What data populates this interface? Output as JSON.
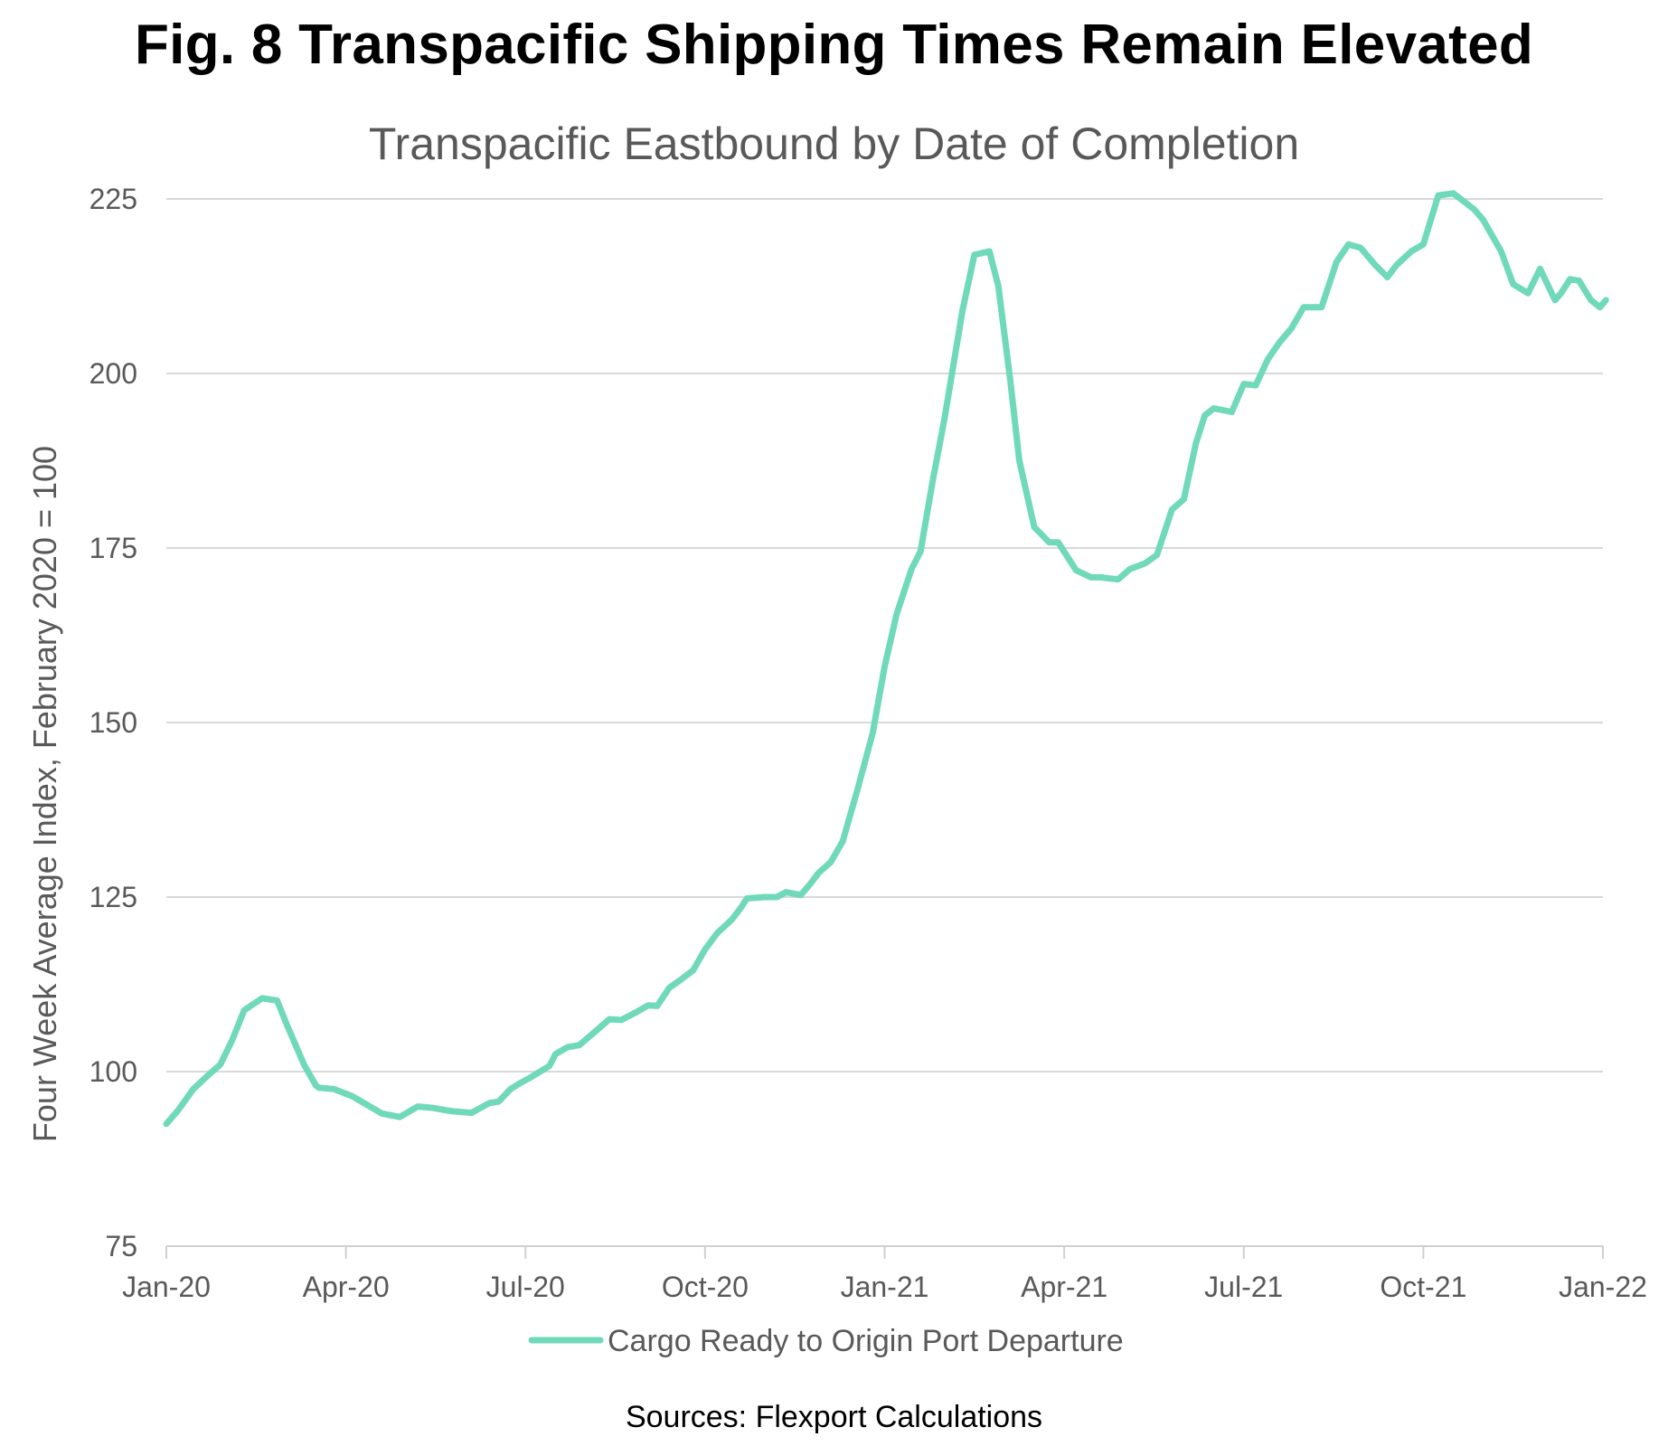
{
  "chart_data": {
    "type": "line",
    "title": "Fig. 8 Transpacific Shipping Times Remain Elevated",
    "subtitle": "Transpacific Eastbound by Date of Completion",
    "ylabel": "Four Week Average Index, February 2020 = 100",
    "xlabel": "",
    "source": "Sources: Flexport Calculations",
    "ylim": [
      75,
      225
    ],
    "yticks": [
      75,
      100,
      125,
      150,
      175,
      200,
      225
    ],
    "xlim": [
      0,
      24
    ],
    "xticks": [
      0,
      3,
      6,
      9,
      12,
      15,
      18,
      21,
      24
    ],
    "xtick_labels": [
      "Jan-20",
      "Apr-20",
      "Jul-20",
      "Oct-20",
      "Jan-21",
      "Apr-21",
      "Jul-21",
      "Oct-21",
      "Jan-22"
    ],
    "x_unit": "months since Jan 2020",
    "grid": true,
    "legend": "bottom-center",
    "color": "#6FD9BA",
    "series": [
      {
        "name": "Cargo Ready to Origin Port Departure",
        "x": [
          0.0,
          0.2,
          0.45,
          0.7,
          0.9,
          1.1,
          1.3,
          1.6,
          1.85,
          2.0,
          2.3,
          2.5,
          2.55,
          2.8,
          3.1,
          3.3,
          3.6,
          3.9,
          4.2,
          4.45,
          4.65,
          4.8,
          5.1,
          5.4,
          5.55,
          5.75,
          5.9,
          6.05,
          6.4,
          6.5,
          6.7,
          6.9,
          7.2,
          7.4,
          7.6,
          7.85,
          8.05,
          8.2,
          8.4,
          8.6,
          8.8,
          9.0,
          9.2,
          9.45,
          9.6,
          9.7,
          10.0,
          10.2,
          10.35,
          10.6,
          10.75,
          10.9,
          11.1,
          11.3,
          11.55,
          11.8,
          12.0,
          12.2,
          12.45,
          12.6,
          12.8,
          13.0,
          13.3,
          13.5,
          13.75,
          13.9,
          14.1,
          14.25,
          14.5,
          14.75,
          14.9,
          15.2,
          15.45,
          15.6,
          15.9,
          16.1,
          16.35,
          16.55,
          16.8,
          17.0,
          17.2,
          17.35,
          17.5,
          17.8,
          18.0,
          18.2,
          18.4,
          18.6,
          18.8,
          19.0,
          19.3,
          19.55,
          19.75,
          19.95,
          20.2,
          20.4,
          20.55,
          20.8,
          21.0,
          21.25,
          21.5,
          21.7,
          21.85,
          22.0,
          22.3,
          22.5,
          22.75,
          22.95,
          23.2,
          23.3,
          23.45,
          23.6,
          23.8,
          23.95,
          24.05
        ],
        "values": [
          92.5,
          94.5,
          97.5,
          99.5,
          101,
          104.5,
          108.8,
          110.5,
          110.2,
          107,
          101,
          98,
          97.7,
          97.5,
          96.5,
          95.5,
          94,
          93.5,
          95,
          94.8,
          94.5,
          94.3,
          94.1,
          95.5,
          95.7,
          97.5,
          98.3,
          99,
          100.8,
          102.5,
          103.5,
          103.8,
          106,
          107.5,
          107.4,
          108.5,
          109.5,
          109.4,
          112,
          113.2,
          114.5,
          117.5,
          119.8,
          121.8,
          123.5,
          124.8,
          125,
          125,
          125.7,
          125.3,
          126.8,
          128.5,
          130,
          133,
          140.5,
          148.5,
          158,
          165.5,
          172,
          174.5,
          184.5,
          193.5,
          209,
          217,
          217.5,
          212.5,
          199,
          187.5,
          178,
          175.8,
          175.8,
          171.8,
          170.8,
          170.8,
          170.5,
          172,
          172.8,
          174,
          180.5,
          182,
          190,
          194,
          195,
          194.5,
          198.5,
          198.3,
          202,
          204.5,
          206.5,
          209.5,
          209.5,
          216,
          218.5,
          218,
          215.5,
          213.8,
          215.5,
          217.5,
          218.5,
          225.5,
          225.8,
          224.5,
          223.5,
          222,
          217.5,
          212.8,
          211.5,
          215,
          210.5,
          211.5,
          213.5,
          213.3,
          210.5,
          209.5,
          210.5
        ]
      }
    ]
  }
}
